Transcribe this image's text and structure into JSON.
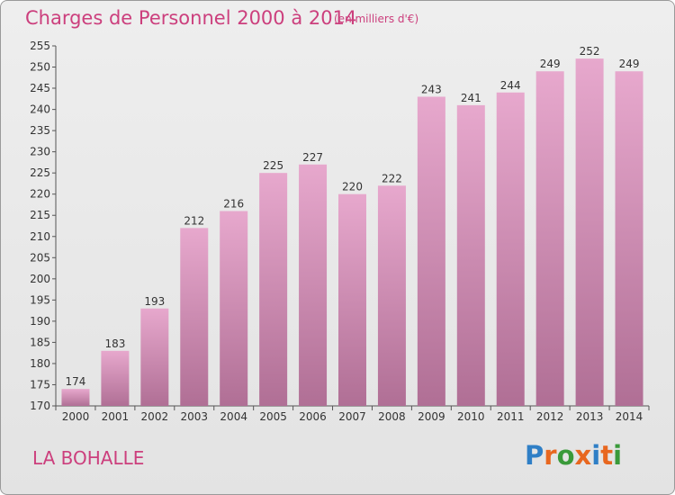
{
  "header": {
    "title": "Charges de Personnel 2000 à 2014",
    "subtitle": "(en milliers d'€)"
  },
  "footer": {
    "commune": "LA BOHALLE",
    "brand": "Proxiti"
  },
  "colors": {
    "accent": "#cc3f7d",
    "bar_top": "#e7a8cd",
    "bar_bottom": "#b06f95",
    "logo_letters": [
      "#2f7fc6",
      "#e8671f",
      "#3a9a3a",
      "#e8671f",
      "#2f7fc6",
      "#e8671f",
      "#3a9a3a"
    ]
  },
  "chart_data": {
    "type": "bar",
    "categories": [
      "2000",
      "2001",
      "2002",
      "2003",
      "2004",
      "2005",
      "2006",
      "2007",
      "2008",
      "2009",
      "2010",
      "2011",
      "2012",
      "2013",
      "2014"
    ],
    "values": [
      174,
      183,
      193,
      212,
      216,
      225,
      227,
      220,
      222,
      243,
      241,
      244,
      249,
      252,
      249
    ],
    "ylim": [
      170,
      255
    ],
    "yticks": [
      170,
      175,
      180,
      185,
      190,
      195,
      200,
      205,
      210,
      215,
      220,
      225,
      230,
      235,
      240,
      245,
      250,
      255
    ],
    "grid": false,
    "data_labels": true
  }
}
